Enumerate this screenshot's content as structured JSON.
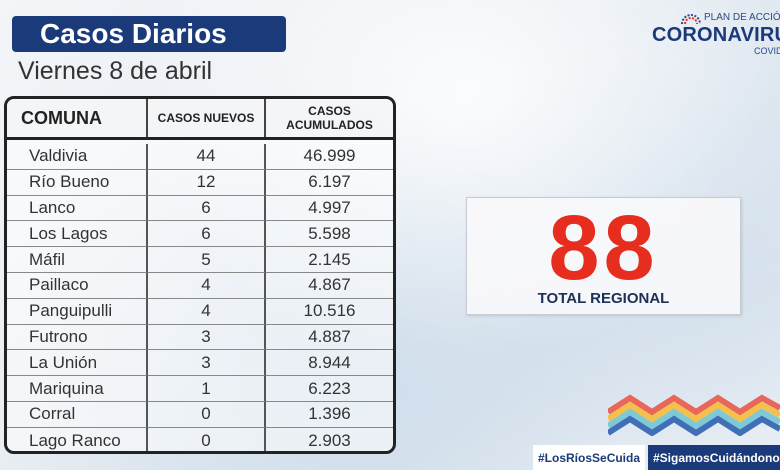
{
  "header": {
    "title": "Casos Diarios",
    "date": "Viernes 8 de abril"
  },
  "logo": {
    "plan": "PLAN DE ACCIÓN",
    "main": "CORONAVIRUS",
    "sub": "COVID"
  },
  "table": {
    "headers": {
      "comuna": "COMUNA",
      "nuevos": "CASOS NUEVOS",
      "acumulados": "CASOS ACUMULADOS"
    },
    "rows": [
      {
        "comuna": "Valdivia",
        "nuevos": "44",
        "acumulados": "46.999"
      },
      {
        "comuna": "Río Bueno",
        "nuevos": "12",
        "acumulados": "6.197"
      },
      {
        "comuna": "Lanco",
        "nuevos": "6",
        "acumulados": "4.997"
      },
      {
        "comuna": "Los Lagos",
        "nuevos": "6",
        "acumulados": "5.598"
      },
      {
        "comuna": "Máfil",
        "nuevos": "5",
        "acumulados": "2.145"
      },
      {
        "comuna": "Paillaco",
        "nuevos": "4",
        "acumulados": "4.867"
      },
      {
        "comuna": "Panguipulli",
        "nuevos": "4",
        "acumulados": "10.516"
      },
      {
        "comuna": "Futrono",
        "nuevos": "3",
        "acumulados": "4.887"
      },
      {
        "comuna": "La Unión",
        "nuevos": "3",
        "acumulados": "8.944"
      },
      {
        "comuna": "Mariquina",
        "nuevos": "1",
        "acumulados": "6.223"
      },
      {
        "comuna": "Corral",
        "nuevos": "0",
        "acumulados": "1.396"
      },
      {
        "comuna": "Lago Ranco",
        "nuevos": "0",
        "acumulados": "2.903"
      }
    ]
  },
  "total": {
    "value": "88",
    "label": "TOTAL REGIONAL",
    "color": "#e62d1e"
  },
  "footer": {
    "hashtag1": "#LosRíosSeCuida",
    "hashtag2": "#SigamosCuidándonos"
  },
  "colors": {
    "navy": "#1b3a7a",
    "red": "#e62d1e"
  }
}
